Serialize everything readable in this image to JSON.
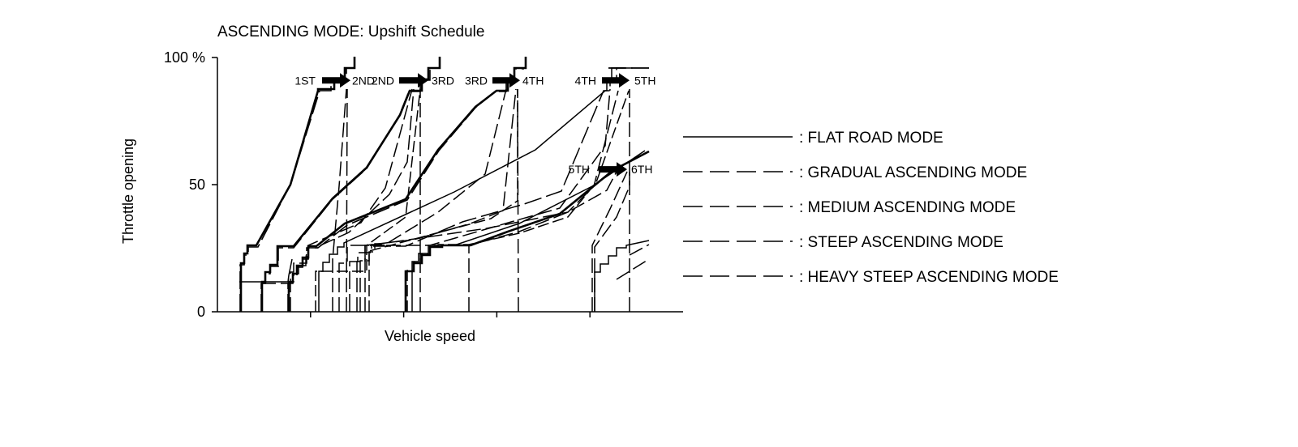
{
  "chart_data": {
    "type": "line",
    "title": "ASCENDING MODE: Upshift Schedule",
    "xlabel": "Vehicle speed",
    "ylabel": "Throttle opening",
    "yticks": [
      {
        "value": 0,
        "label": "0"
      },
      {
        "value": 50,
        "label": "50"
      },
      {
        "value": 100,
        "label": "100 %"
      }
    ],
    "x_tick_count": 4,
    "ylim": [
      0,
      100
    ],
    "grid": false,
    "legend_position": "right",
    "series": [
      {
        "name": ": FLAT ROAD MODE",
        "dash": "solid"
      },
      {
        "name": ": GRADUAL ASCENDING MODE",
        "dash": "dashed"
      },
      {
        "name": ": MEDIUM ASCENDING MODE",
        "dash": "dashed"
      },
      {
        "name": ": STEEP ASCENDING MODE",
        "dash": "dashed"
      },
      {
        "name": ": HEAVY STEEP ASCENDING MODE",
        "dash": "dashed"
      }
    ],
    "shift_annotations": [
      {
        "from": "1ST",
        "to": "2ND",
        "throttle": 91
      },
      {
        "from": "2ND",
        "to": "3RD",
        "throttle": 91
      },
      {
        "from": "3RD",
        "to": "4TH",
        "throttle": 91
      },
      {
        "from": "4TH",
        "to": "5TH",
        "throttle": 91
      },
      {
        "from": "5TH",
        "to": "6TH",
        "throttle": 56
      }
    ]
  }
}
